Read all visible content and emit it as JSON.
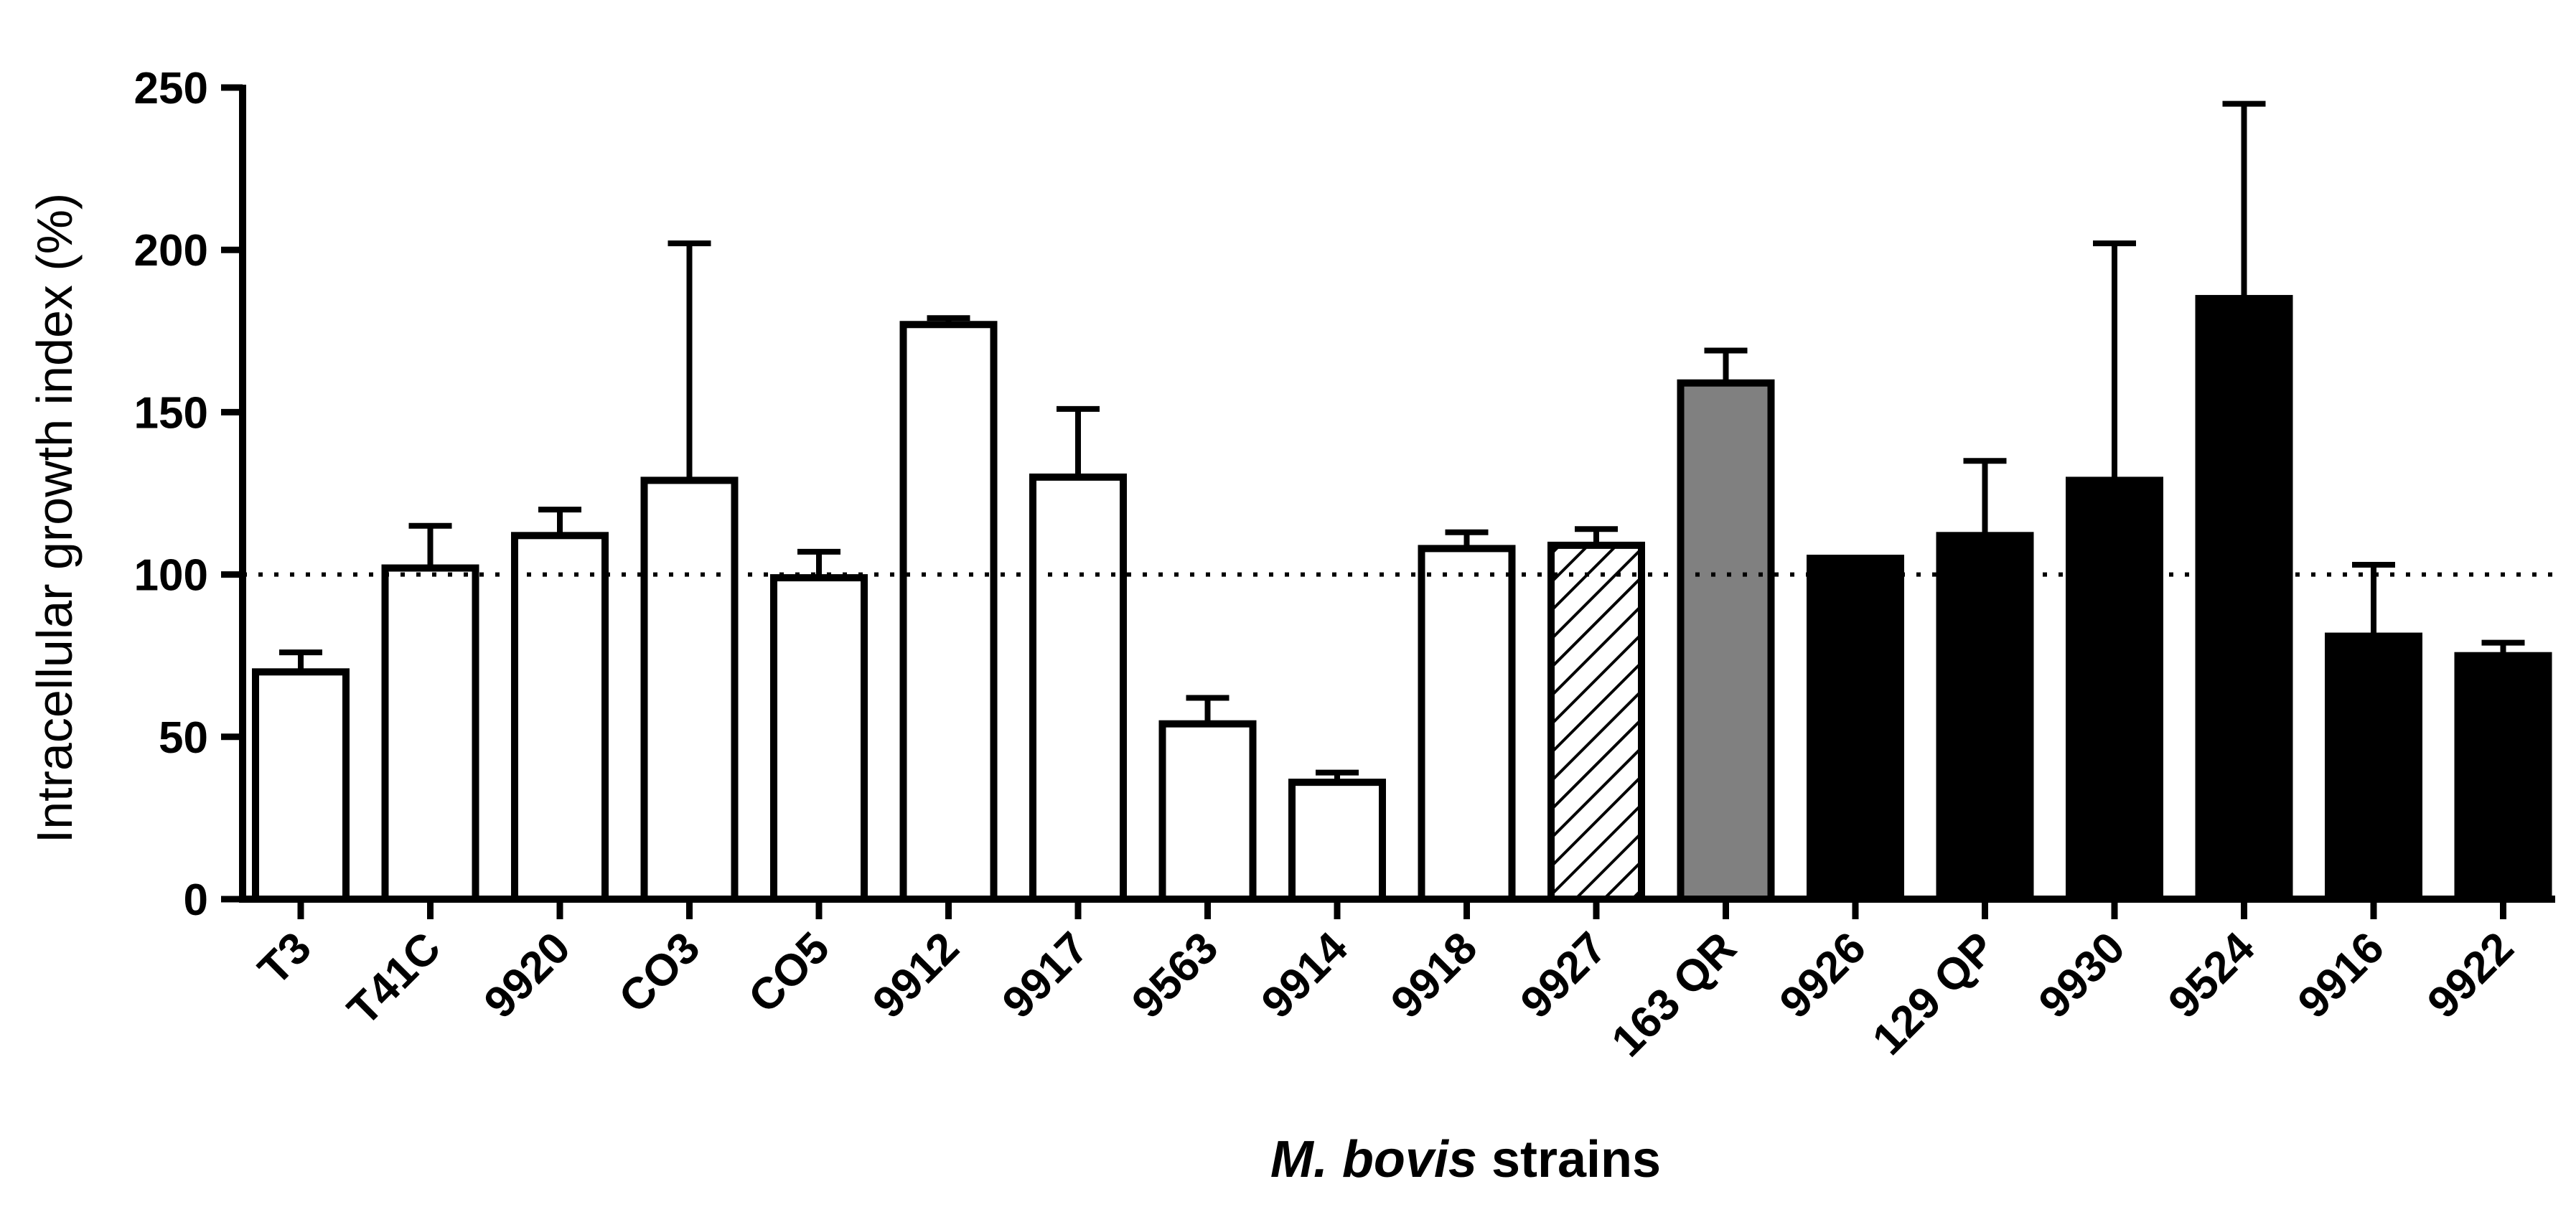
{
  "chart_data": {
    "type": "bar",
    "ylabel": "Intracellular growth index (%)",
    "xlabel_italic": "M. bovis",
    "xlabel_rest": " strains",
    "ylim": [
      0,
      250
    ],
    "yticks": [
      0,
      50,
      100,
      150,
      200,
      250
    ],
    "reference_line": 100,
    "categories": [
      "T3",
      "T41C",
      "9920",
      "CO3",
      "CO5",
      "9912",
      "9917",
      "9563",
      "9914",
      "9918",
      "9927",
      "163 QR",
      "9926",
      "129 QP",
      "9930",
      "9524",
      "9916",
      "9922"
    ],
    "values": [
      70,
      102,
      112,
      129,
      99,
      177,
      130,
      54,
      36,
      108,
      109,
      159,
      105,
      112,
      129,
      185,
      81,
      75
    ],
    "error_upper": [
      76,
      115,
      120,
      202,
      107,
      179,
      151,
      62,
      39,
      113,
      114,
      169,
      105,
      135,
      202,
      245,
      103,
      79
    ],
    "fill_styles": [
      "white",
      "white",
      "white",
      "white",
      "white",
      "white",
      "white",
      "white",
      "white",
      "white",
      "hatched",
      "gray",
      "black",
      "black",
      "black",
      "black",
      "black",
      "black"
    ],
    "colors": {
      "white": "#ffffff",
      "gray": "#808080",
      "black": "#000000",
      "outline": "#000000"
    },
    "grid": false,
    "legend": "none"
  }
}
